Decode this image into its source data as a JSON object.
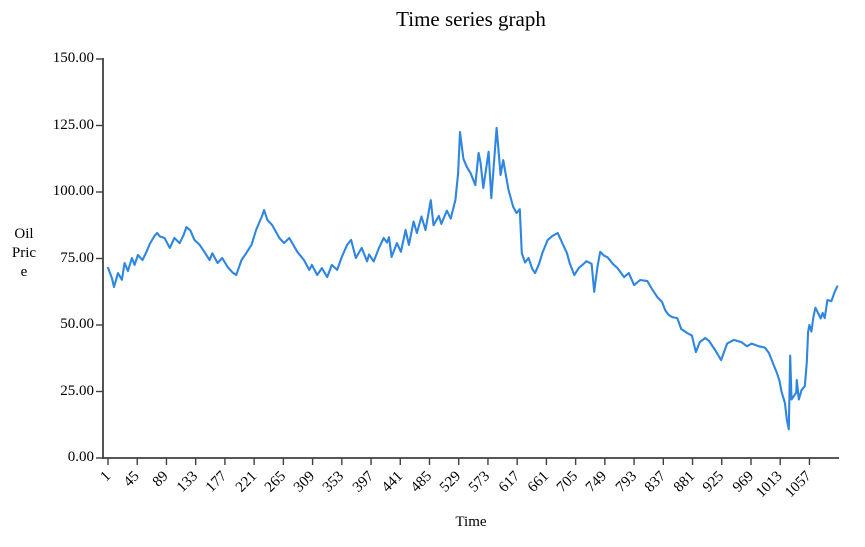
{
  "chart_data": {
    "type": "line",
    "title": "Time series graph",
    "xlabel": "Time",
    "ylabel": "Oil Price",
    "ylabel_lines": [
      "Oil",
      "Pric",
      "e"
    ],
    "grid": false,
    "legend_position": "none",
    "line_color": "#2e86e0",
    "axis_color": "#404040",
    "text_color": "#000000",
    "ylim": [
      0,
      150
    ],
    "xlim": [
      1,
      1100
    ],
    "y_ticks": [
      "150.00",
      "125.00",
      "100.00",
      "75.00",
      "50.00",
      "25.00",
      "0.00"
    ],
    "x_ticks": [
      1,
      45,
      89,
      133,
      177,
      221,
      265,
      309,
      353,
      397,
      441,
      485,
      529,
      573,
      617,
      661,
      705,
      749,
      793,
      837,
      881,
      925,
      969,
      1013,
      1057
    ],
    "series": [
      {
        "name": "Oil Price",
        "points": [
          [
            1,
            71.5
          ],
          [
            7,
            67.5
          ],
          [
            10,
            64.3
          ],
          [
            16,
            69.5
          ],
          [
            22,
            67.0
          ],
          [
            26,
            73.3
          ],
          [
            31,
            70.3
          ],
          [
            37,
            75.2
          ],
          [
            41,
            72.6
          ],
          [
            46,
            76.3
          ],
          [
            53,
            74.4
          ],
          [
            59,
            77.5
          ],
          [
            64,
            80.5
          ],
          [
            71,
            83.5
          ],
          [
            75,
            84.6
          ],
          [
            79,
            83.3
          ],
          [
            86,
            82.7
          ],
          [
            94,
            79.0
          ],
          [
            101,
            82.7
          ],
          [
            109,
            80.8
          ],
          [
            115,
            83.9
          ],
          [
            119,
            86.8
          ],
          [
            125,
            85.5
          ],
          [
            131,
            82.0
          ],
          [
            139,
            80.1
          ],
          [
            146,
            77.5
          ],
          [
            154,
            74.4
          ],
          [
            158,
            77.0
          ],
          [
            166,
            73.3
          ],
          [
            173,
            75.2
          ],
          [
            181,
            71.8
          ],
          [
            188,
            69.9
          ],
          [
            194,
            68.8
          ],
          [
            202,
            74.4
          ],
          [
            209,
            77.0
          ],
          [
            214,
            79.0
          ],
          [
            217,
            80.1
          ],
          [
            224,
            85.7
          ],
          [
            233,
            91.0
          ],
          [
            236,
            93.2
          ],
          [
            241,
            89.5
          ],
          [
            248,
            87.6
          ],
          [
            259,
            82.7
          ],
          [
            266,
            80.8
          ],
          [
            274,
            82.7
          ],
          [
            286,
            77.5
          ],
          [
            296,
            74.4
          ],
          [
            304,
            70.7
          ],
          [
            308,
            72.6
          ],
          [
            316,
            68.8
          ],
          [
            323,
            71.4
          ],
          [
            331,
            68.0
          ],
          [
            338,
            72.6
          ],
          [
            346,
            70.7
          ],
          [
            353,
            75.6
          ],
          [
            361,
            80.1
          ],
          [
            367,
            82.0
          ],
          [
            374,
            75.2
          ],
          [
            383,
            79.0
          ],
          [
            391,
            73.9
          ],
          [
            394,
            76.5
          ],
          [
            401,
            73.9
          ],
          [
            409,
            79.0
          ],
          [
            416,
            82.7
          ],
          [
            421,
            81.0
          ],
          [
            424,
            83.0
          ],
          [
            428,
            75.6
          ],
          [
            436,
            80.8
          ],
          [
            442,
            77.5
          ],
          [
            449,
            85.7
          ],
          [
            454,
            80.1
          ],
          [
            461,
            88.9
          ],
          [
            466,
            84.6
          ],
          [
            473,
            90.8
          ],
          [
            479,
            85.7
          ],
          [
            487,
            96.9
          ],
          [
            491,
            87.5
          ],
          [
            499,
            91.0
          ],
          [
            503,
            88.0
          ],
          [
            511,
            93.0
          ],
          [
            517,
            90.0
          ],
          [
            524,
            97.0
          ],
          [
            528,
            107.0
          ],
          [
            531,
            122.5
          ],
          [
            536,
            112.5
          ],
          [
            541,
            109.5
          ],
          [
            547,
            107.0
          ],
          [
            554,
            102.6
          ],
          [
            559,
            114.7
          ],
          [
            562,
            110.9
          ],
          [
            566,
            101.5
          ],
          [
            574,
            115.1
          ],
          [
            578,
            97.7
          ],
          [
            586,
            124.1
          ],
          [
            592,
            106.4
          ],
          [
            596,
            112.0
          ],
          [
            604,
            100.8
          ],
          [
            611,
            94.4
          ],
          [
            616,
            92.1
          ],
          [
            621,
            93.5
          ],
          [
            624,
            77.0
          ],
          [
            629,
            73.5
          ],
          [
            634,
            75.2
          ],
          [
            640,
            71.0
          ],
          [
            644,
            69.5
          ],
          [
            650,
            73.0
          ],
          [
            655,
            77.1
          ],
          [
            663,
            82.0
          ],
          [
            670,
            83.5
          ],
          [
            678,
            84.6
          ],
          [
            685,
            80.8
          ],
          [
            692,
            77.0
          ],
          [
            696,
            73.3
          ],
          [
            703,
            68.8
          ],
          [
            710,
            71.5
          ],
          [
            715,
            72.5
          ],
          [
            721,
            74.0
          ],
          [
            729,
            73.0
          ],
          [
            733,
            62.5
          ],
          [
            738,
            72.0
          ],
          [
            742,
            77.5
          ],
          [
            748,
            76.0
          ],
          [
            753,
            75.5
          ],
          [
            761,
            73.0
          ],
          [
            768,
            71.4
          ],
          [
            778,
            68.0
          ],
          [
            785,
            69.5
          ],
          [
            793,
            65.0
          ],
          [
            802,
            66.9
          ],
          [
            813,
            66.5
          ],
          [
            820,
            63.5
          ],
          [
            828,
            60.5
          ],
          [
            835,
            58.7
          ],
          [
            840,
            55.5
          ],
          [
            845,
            53.8
          ],
          [
            850,
            53.0
          ],
          [
            858,
            52.6
          ],
          [
            864,
            48.5
          ],
          [
            873,
            47.0
          ],
          [
            880,
            46.0
          ],
          [
            886,
            39.8
          ],
          [
            892,
            43.6
          ],
          [
            900,
            45.1
          ],
          [
            906,
            44.0
          ],
          [
            915,
            40.6
          ],
          [
            924,
            36.8
          ],
          [
            933,
            43.0
          ],
          [
            943,
            44.4
          ],
          [
            955,
            43.5
          ],
          [
            963,
            42.0
          ],
          [
            970,
            43.0
          ],
          [
            981,
            42.0
          ],
          [
            990,
            41.5
          ],
          [
            996,
            39.5
          ],
          [
            1003,
            35.0
          ],
          [
            1008,
            32.0
          ],
          [
            1012,
            29.0
          ],
          [
            1015,
            25.0
          ],
          [
            1020,
            20.7
          ],
          [
            1023,
            14.3
          ],
          [
            1026,
            10.8
          ],
          [
            1028,
            38.5
          ],
          [
            1030,
            22.0
          ],
          [
            1034,
            23.5
          ],
          [
            1037,
            24.5
          ],
          [
            1038,
            29.3
          ],
          [
            1041,
            22.0
          ],
          [
            1045,
            25.5
          ],
          [
            1050,
            27.0
          ],
          [
            1053,
            36.0
          ],
          [
            1055,
            47.4
          ],
          [
            1057,
            50.0
          ],
          [
            1060,
            47.5
          ],
          [
            1063,
            53.0
          ],
          [
            1066,
            56.5
          ],
          [
            1074,
            52.5
          ],
          [
            1077,
            54.5
          ],
          [
            1080,
            52.6
          ],
          [
            1084,
            59.4
          ],
          [
            1090,
            59.0
          ],
          [
            1095,
            62.5
          ],
          [
            1099,
            64.5
          ]
        ]
      }
    ]
  }
}
